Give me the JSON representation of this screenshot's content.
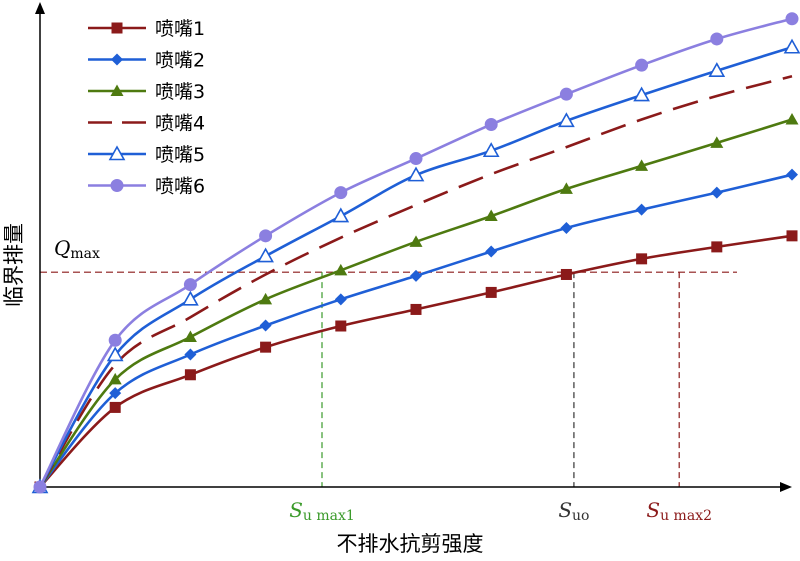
{
  "chart_data": {
    "type": "line",
    "xlabel": "不排水抗剪强度",
    "ylabel": "临界排量",
    "xlim": [
      0,
      10
    ],
    "ylim": [
      0,
      10
    ],
    "grid": false,
    "legend_position": "top-left",
    "x": [
      0,
      1,
      2,
      3,
      4,
      5,
      6,
      7,
      8,
      9,
      10
    ],
    "series": [
      {
        "name": "喷嘴1",
        "color": "#8B1A1A",
        "marker": "square",
        "dash": "solid",
        "values": [
          0,
          1.73,
          2.44,
          3.04,
          3.5,
          3.86,
          4.23,
          4.62,
          4.96,
          5.22,
          5.46
        ]
      },
      {
        "name": "喷嘴2",
        "color": "#1F5FD6",
        "marker": "diamond",
        "dash": "solid",
        "values": [
          0,
          2.04,
          2.88,
          3.51,
          4.08,
          4.59,
          5.12,
          5.63,
          6.03,
          6.4,
          6.79
        ]
      },
      {
        "name": "喷嘴3",
        "color": "#4E7A10",
        "marker": "triangle",
        "dash": "solid",
        "values": [
          0,
          2.34,
          3.26,
          4.08,
          4.71,
          5.33,
          5.89,
          6.48,
          6.98,
          7.48,
          7.99
        ]
      },
      {
        "name": "喷嘴4",
        "color": "#8B1A1A",
        "marker": "none",
        "dash": "dashed",
        "values": [
          0,
          2.66,
          3.69,
          4.62,
          5.42,
          6.13,
          6.8,
          7.39,
          7.99,
          8.5,
          8.93
        ]
      },
      {
        "name": "喷嘴5",
        "color": "#1F5FD6",
        "marker": "triangle-open",
        "dash": "solid",
        "values": [
          0,
          2.87,
          4.08,
          5.02,
          5.89,
          6.78,
          7.31,
          7.96,
          8.52,
          9.05,
          9.56
        ]
      },
      {
        "name": "喷嘴6",
        "color": "#8B7FE0",
        "marker": "circle",
        "dash": "solid",
        "values": [
          0,
          3.19,
          4.4,
          5.46,
          6.4,
          7.14,
          7.88,
          8.54,
          9.17,
          9.74,
          10.18
        ]
      }
    ],
    "reference_lines": {
      "q_max": {
        "value": 4.67,
        "label_main": "Q",
        "label_sub": "max",
        "color": "#8B1A1A"
      },
      "verticals": [
        {
          "x": 3.75,
          "label_main": "S",
          "label_sub": "u max1",
          "color": "#3A9A2A"
        },
        {
          "x": 7.1,
          "label_main": "S",
          "label_sub": "uo",
          "color": "#333333"
        },
        {
          "x": 8.5,
          "label_main": "S",
          "label_sub": "u max2",
          "color": "#8B1A1A"
        }
      ]
    }
  }
}
